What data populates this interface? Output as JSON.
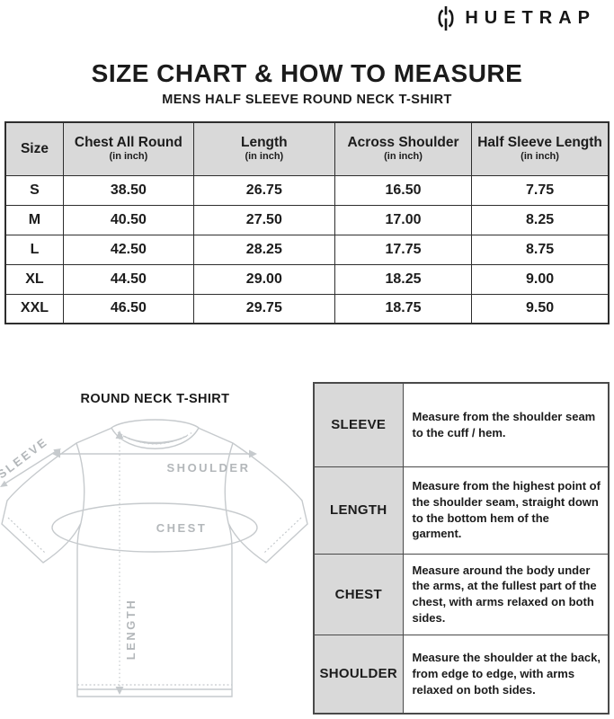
{
  "brand": {
    "name": "HUETRAP",
    "icon": "huetrap-mark-icon"
  },
  "header": {
    "title": "SIZE CHART & HOW TO MEASURE",
    "subtitle": "MENS HALF SLEEVE ROUND NECK T-SHIRT"
  },
  "size_table": {
    "columns": [
      {
        "label": "Size",
        "sub": ""
      },
      {
        "label": "Chest All Round",
        "sub": "(in inch)"
      },
      {
        "label": "Length",
        "sub": "(in inch)"
      },
      {
        "label": "Across Shoulder",
        "sub": "(in inch)"
      },
      {
        "label": "Half Sleeve Length",
        "sub": "(in inch)"
      }
    ],
    "rows": [
      {
        "size": "S",
        "values": [
          "38.50",
          "26.75",
          "16.50",
          "7.75"
        ]
      },
      {
        "size": "M",
        "values": [
          "40.50",
          "27.50",
          "17.00",
          "8.25"
        ]
      },
      {
        "size": "L",
        "values": [
          "42.50",
          "28.25",
          "17.75",
          "8.75"
        ]
      },
      {
        "size": "XL",
        "values": [
          "44.50",
          "29.00",
          "18.25",
          "9.00"
        ]
      },
      {
        "size": "XXL",
        "values": [
          "46.50",
          "29.75",
          "18.75",
          "9.50"
        ]
      }
    ]
  },
  "diagram": {
    "title": "ROUND NECK T-SHIRT",
    "labels": {
      "sleeve": "SLEEVE",
      "shoulder": "SHOULDER",
      "chest": "CHEST",
      "length": "LENGTH"
    }
  },
  "measure_table": {
    "rows": [
      {
        "label": "SLEEVE",
        "description": "Measure from the shoulder seam to the cuff / hem."
      },
      {
        "label": "LENGTH",
        "description": "Measure from the highest point of the shoulder seam, straight down to the bottom hem of the garment."
      },
      {
        "label": "CHEST",
        "description": "Measure around the body under the arms, at the fullest part of the chest, with arms relaxed on both sides."
      },
      {
        "label": "SHOULDER",
        "description": "Measure the shoulder at the back, from edge to edge, with arms relaxed on both sides."
      }
    ]
  },
  "colors": {
    "header_bg": "#d9d9d9",
    "table_border": "#2e2e2e",
    "measure_border": "#4a4a4a",
    "text": "#1c1c1c",
    "diagram_line": "#c6cacd",
    "diagram_label": "#b3b7ba"
  }
}
